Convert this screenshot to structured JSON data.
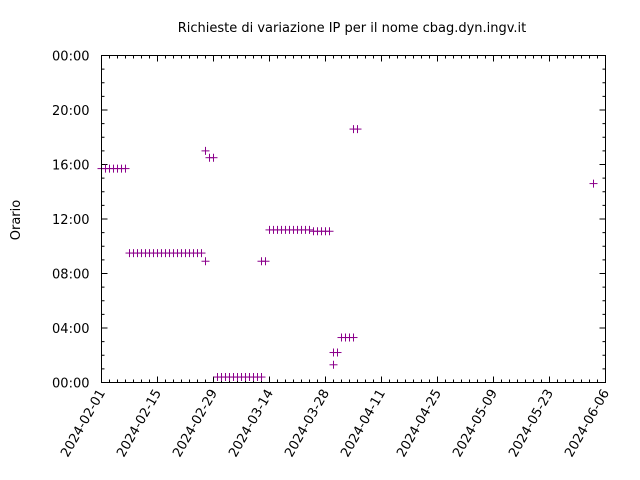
{
  "chart_data": {
    "type": "scatter",
    "title": "Richieste di variazione IP per il nome cbag.dyn.ingv.it",
    "xlabel": "",
    "ylabel": "Orario",
    "marker": "+",
    "color": "#8b008b",
    "xlim": [
      "2024-02-01",
      "2024-06-06"
    ],
    "ylim": [
      0,
      24
    ],
    "x_ticks": [
      "2024-02-01",
      "2024-02-15",
      "2024-02-29",
      "2024-03-14",
      "2024-03-28",
      "2024-04-11",
      "2024-04-25",
      "2024-05-09",
      "2024-05-23",
      "2024-06-06"
    ],
    "y_ticks": [
      {
        "value": 0,
        "label": "00:00"
      },
      {
        "value": 4,
        "label": "04:00"
      },
      {
        "value": 8,
        "label": "08:00"
      },
      {
        "value": 12,
        "label": "12:00"
      },
      {
        "value": 16,
        "label": "16:00"
      },
      {
        "value": 20,
        "label": "20:00"
      },
      {
        "value": 24,
        "label": "00:00"
      }
    ],
    "points": [
      {
        "x": "2024-02-01",
        "y": 15.7
      },
      {
        "x": "2024-02-02",
        "y": 15.7
      },
      {
        "x": "2024-02-03",
        "y": 15.7
      },
      {
        "x": "2024-02-04",
        "y": 15.7
      },
      {
        "x": "2024-02-05",
        "y": 15.7
      },
      {
        "x": "2024-02-06",
        "y": 15.7
      },
      {
        "x": "2024-02-07",
        "y": 15.7
      },
      {
        "x": "2024-02-08",
        "y": 9.5
      },
      {
        "x": "2024-02-09",
        "y": 9.5
      },
      {
        "x": "2024-02-10",
        "y": 9.5
      },
      {
        "x": "2024-02-11",
        "y": 9.5
      },
      {
        "x": "2024-02-12",
        "y": 9.5
      },
      {
        "x": "2024-02-13",
        "y": 9.5
      },
      {
        "x": "2024-02-14",
        "y": 9.5
      },
      {
        "x": "2024-02-15",
        "y": 9.5
      },
      {
        "x": "2024-02-16",
        "y": 9.5
      },
      {
        "x": "2024-02-17",
        "y": 9.5
      },
      {
        "x": "2024-02-18",
        "y": 9.5
      },
      {
        "x": "2024-02-19",
        "y": 9.5
      },
      {
        "x": "2024-02-20",
        "y": 9.5
      },
      {
        "x": "2024-02-21",
        "y": 9.5
      },
      {
        "x": "2024-02-22",
        "y": 9.5
      },
      {
        "x": "2024-02-23",
        "y": 9.5
      },
      {
        "x": "2024-02-24",
        "y": 9.5
      },
      {
        "x": "2024-02-25",
        "y": 9.5
      },
      {
        "x": "2024-02-26",
        "y": 9.5
      },
      {
        "x": "2024-02-27",
        "y": 17.0
      },
      {
        "x": "2024-02-27",
        "y": 8.9
      },
      {
        "x": "2024-02-28",
        "y": 16.5
      },
      {
        "x": "2024-02-29",
        "y": 16.5
      },
      {
        "x": "2024-03-01",
        "y": 0.4
      },
      {
        "x": "2024-03-02",
        "y": 0.4
      },
      {
        "x": "2024-03-03",
        "y": 0.4
      },
      {
        "x": "2024-03-04",
        "y": 0.4
      },
      {
        "x": "2024-03-05",
        "y": 0.4
      },
      {
        "x": "2024-03-06",
        "y": 0.4
      },
      {
        "x": "2024-03-07",
        "y": 0.4
      },
      {
        "x": "2024-03-08",
        "y": 0.4
      },
      {
        "x": "2024-03-09",
        "y": 0.4
      },
      {
        "x": "2024-03-10",
        "y": 0.4
      },
      {
        "x": "2024-03-11",
        "y": 0.4
      },
      {
        "x": "2024-03-12",
        "y": 0.4
      },
      {
        "x": "2024-03-12",
        "y": 8.9
      },
      {
        "x": "2024-03-13",
        "y": 8.9
      },
      {
        "x": "2024-03-14",
        "y": 11.2
      },
      {
        "x": "2024-03-15",
        "y": 11.2
      },
      {
        "x": "2024-03-16",
        "y": 11.2
      },
      {
        "x": "2024-03-17",
        "y": 11.2
      },
      {
        "x": "2024-03-18",
        "y": 11.2
      },
      {
        "x": "2024-03-19",
        "y": 11.2
      },
      {
        "x": "2024-03-20",
        "y": 11.2
      },
      {
        "x": "2024-03-21",
        "y": 11.2
      },
      {
        "x": "2024-03-22",
        "y": 11.2
      },
      {
        "x": "2024-03-23",
        "y": 11.2
      },
      {
        "x": "2024-03-24",
        "y": 11.2
      },
      {
        "x": "2024-03-25",
        "y": 11.1
      },
      {
        "x": "2024-03-26",
        "y": 11.1
      },
      {
        "x": "2024-03-27",
        "y": 11.1
      },
      {
        "x": "2024-03-28",
        "y": 11.1
      },
      {
        "x": "2024-03-29",
        "y": 11.1
      },
      {
        "x": "2024-03-30",
        "y": 1.3
      },
      {
        "x": "2024-03-30",
        "y": 2.2
      },
      {
        "x": "2024-03-31",
        "y": 2.2
      },
      {
        "x": "2024-04-01",
        "y": 3.3
      },
      {
        "x": "2024-04-02",
        "y": 3.3
      },
      {
        "x": "2024-04-03",
        "y": 3.3
      },
      {
        "x": "2024-04-04",
        "y": 3.3
      },
      {
        "x": "2024-04-04",
        "y": 18.6
      },
      {
        "x": "2024-04-05",
        "y": 18.6
      },
      {
        "x": "2024-06-03",
        "y": 14.6
      }
    ]
  }
}
